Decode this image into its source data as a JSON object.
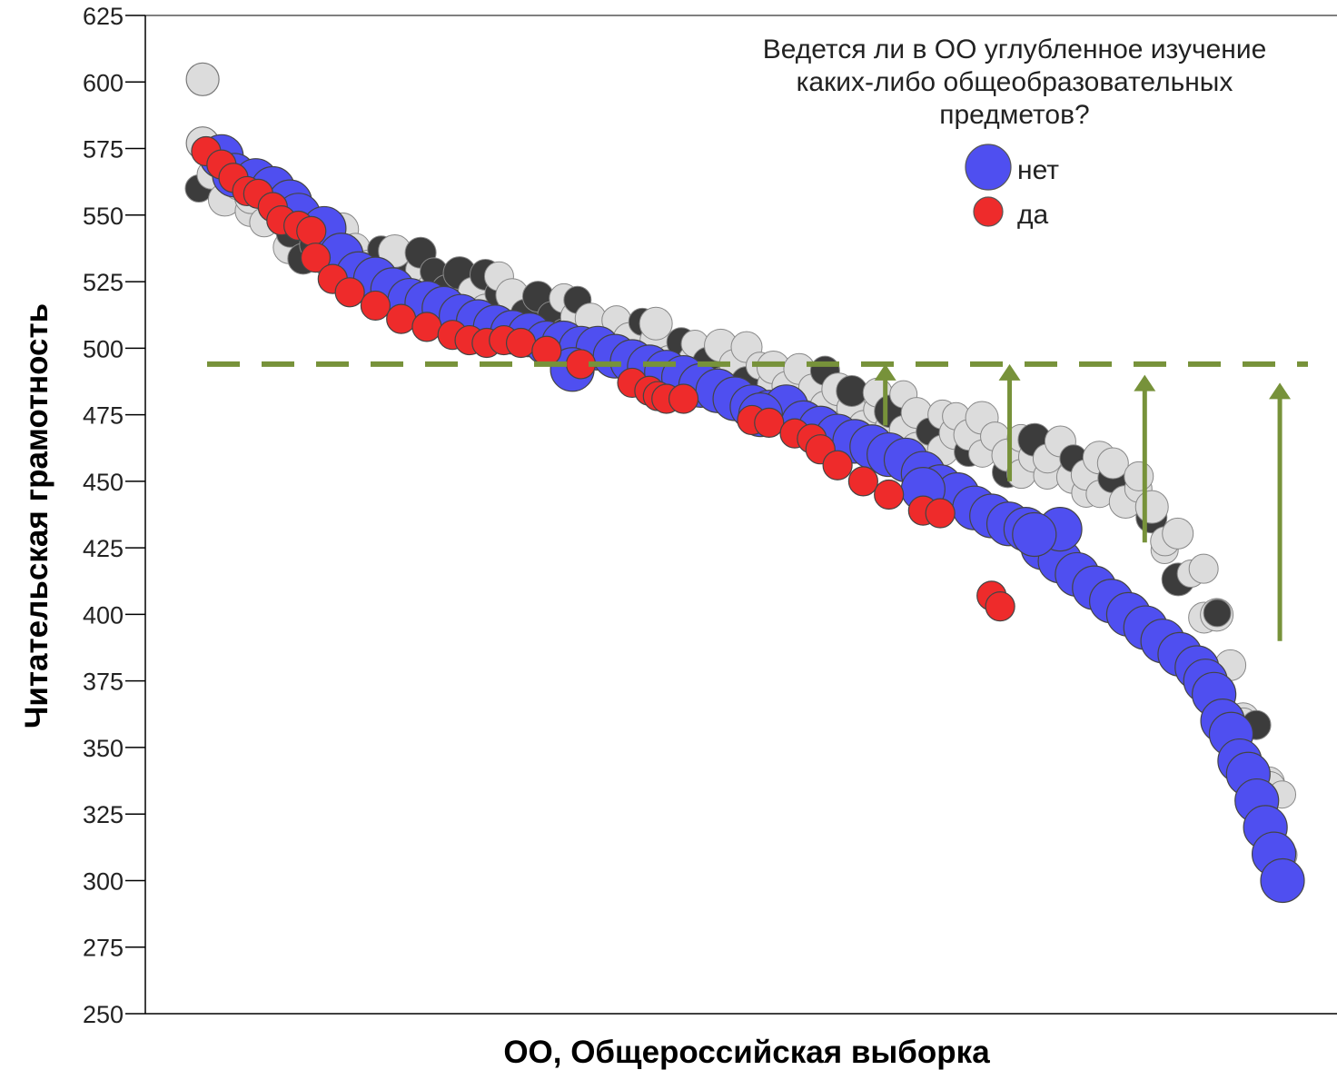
{
  "chart_data": {
    "type": "scatter",
    "xlabel": "ОО, Общероссийская выборка",
    "ylabel": "Читательская грамотность",
    "ylim": [
      250,
      625
    ],
    "yticks": [
      250,
      275,
      300,
      325,
      350,
      375,
      400,
      425,
      450,
      475,
      500,
      525,
      550,
      575,
      600,
      625
    ],
    "x_axis_ticks": "none",
    "legend": {
      "title": "Ведется ли в ОО углубленное изучение каких-либо общеобразовательных предметов?",
      "position": "top-right",
      "entries": [
        {
          "label": "нет",
          "color": "#4f4ff0"
        },
        {
          "label": "да",
          "color": "#ee2b2b"
        }
      ]
    },
    "reference_line": {
      "y": 494,
      "style": "dashed",
      "color": "#77923a"
    },
    "arrows": [
      {
        "x": 0.63,
        "from": 471,
        "to": 494,
        "color": "#77923a"
      },
      {
        "x": 0.745,
        "from": 450,
        "to": 494,
        "color": "#77923a"
      },
      {
        "x": 0.87,
        "from": 427,
        "to": 490,
        "color": "#77923a"
      },
      {
        "x": 0.995,
        "from": 390,
        "to": 487,
        "color": "#77923a"
      }
    ],
    "series": [
      {
        "name": "нет",
        "color": "#4f4ff0",
        "points": [
          [
            0.02,
            572
          ],
          [
            0.035,
            565
          ],
          [
            0.06,
            563
          ],
          [
            0.08,
            560
          ],
          [
            0.1,
            555
          ],
          [
            0.11,
            550
          ],
          [
            0.14,
            545
          ],
          [
            0.16,
            535
          ],
          [
            0.18,
            528
          ],
          [
            0.2,
            526
          ],
          [
            0.22,
            522
          ],
          [
            0.24,
            518
          ],
          [
            0.26,
            517
          ],
          [
            0.28,
            515
          ],
          [
            0.3,
            512
          ],
          [
            0.32,
            510
          ],
          [
            0.34,
            508
          ],
          [
            0.36,
            506
          ],
          [
            0.38,
            505
          ],
          [
            0.4,
            502
          ],
          [
            0.42,
            502
          ],
          [
            0.44,
            500
          ],
          [
            0.46,
            500
          ],
          [
            0.48,
            497
          ],
          [
            0.5,
            495
          ],
          [
            0.52,
            493
          ],
          [
            0.54,
            491
          ],
          [
            0.56,
            489
          ],
          [
            0.58,
            486
          ],
          [
            0.6,
            484
          ],
          [
            0.62,
            481
          ],
          [
            0.64,
            478
          ],
          [
            0.66,
            476
          ],
          [
            0.68,
            478
          ],
          [
            0.7,
            472
          ],
          [
            0.72,
            470
          ],
          [
            0.74,
            467
          ],
          [
            0.76,
            465
          ],
          [
            0.78,
            463
          ],
          [
            0.8,
            460
          ],
          [
            0.82,
            458
          ],
          [
            0.84,
            453
          ],
          [
            0.86,
            448
          ],
          [
            0.88,
            445
          ],
          [
            0.9,
            440
          ],
          [
            0.92,
            437
          ],
          [
            0.94,
            434
          ],
          [
            0.96,
            432
          ],
          [
            0.98,
            425
          ],
          [
            1.0,
            420
          ],
          [
            1.02,
            415
          ],
          [
            1.04,
            410
          ],
          [
            1.06,
            405
          ],
          [
            1.08,
            400
          ],
          [
            1.1,
            395
          ],
          [
            1.12,
            390
          ],
          [
            1.14,
            385
          ],
          [
            1.16,
            380
          ],
          [
            1.17,
            375
          ],
          [
            1.18,
            370
          ],
          [
            1.19,
            360
          ],
          [
            1.2,
            355
          ],
          [
            1.21,
            345
          ],
          [
            1.22,
            340
          ],
          [
            1.23,
            330
          ],
          [
            1.24,
            320
          ],
          [
            1.25,
            310
          ],
          [
            1.26,
            300
          ],
          [
            0.43,
            492
          ],
          [
            0.65,
            475
          ],
          [
            0.84,
            447
          ],
          [
            1.0,
            432
          ],
          [
            0.97,
            430
          ]
        ]
      },
      {
        "name": "да",
        "color": "#ee2b2b",
        "points": [
          [
            0.002,
            574
          ],
          [
            0.02,
            569
          ],
          [
            0.034,
            564
          ],
          [
            0.05,
            559
          ],
          [
            0.063,
            558
          ],
          [
            0.08,
            553
          ],
          [
            0.09,
            548
          ],
          [
            0.11,
            546
          ],
          [
            0.125,
            544
          ],
          [
            0.13,
            534
          ],
          [
            0.15,
            526
          ],
          [
            0.17,
            521
          ],
          [
            0.2,
            516
          ],
          [
            0.23,
            511
          ],
          [
            0.26,
            508
          ],
          [
            0.29,
            505
          ],
          [
            0.31,
            503
          ],
          [
            0.33,
            502
          ],
          [
            0.35,
            503
          ],
          [
            0.37,
            502
          ],
          [
            0.4,
            499
          ],
          [
            0.44,
            494
          ],
          [
            0.5,
            487
          ],
          [
            0.52,
            484
          ],
          [
            0.53,
            482
          ],
          [
            0.54,
            481
          ],
          [
            0.56,
            481
          ],
          [
            0.64,
            473
          ],
          [
            0.66,
            472
          ],
          [
            0.69,
            468
          ],
          [
            0.71,
            466
          ],
          [
            0.72,
            462
          ],
          [
            0.74,
            456
          ],
          [
            0.77,
            450
          ],
          [
            0.8,
            445
          ],
          [
            0.84,
            439
          ],
          [
            0.86,
            438
          ],
          [
            0.92,
            407
          ],
          [
            0.93,
            403
          ]
        ]
      }
    ]
  }
}
